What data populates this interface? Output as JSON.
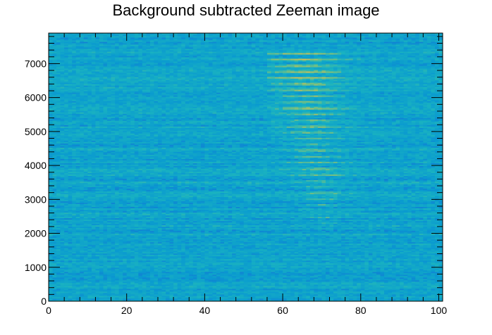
{
  "chart_data": {
    "type": "heatmap",
    "title": "Background subtracted Zeeman image",
    "xlabel": "",
    "ylabel": "",
    "xlim": [
      0,
      101
    ],
    "ylim": [
      0,
      7900
    ],
    "x_ticks": [
      "0",
      "20",
      "40",
      "60",
      "80",
      "100"
    ],
    "y_ticks": [
      "0",
      "1000",
      "2000",
      "3000",
      "4000",
      "5000",
      "6000",
      "7000"
    ],
    "colormap": [
      "#1b5fd8",
      "#0a9ad0",
      "#1ab3c0",
      "#7fc07a",
      "#d8c050"
    ],
    "background_color": "#0f9dcc",
    "fringe_region": {
      "x_range": [
        56,
        82
      ],
      "y_range": [
        2300,
        7300
      ],
      "description_peak_x": 68,
      "fringe_count": 28
    }
  }
}
